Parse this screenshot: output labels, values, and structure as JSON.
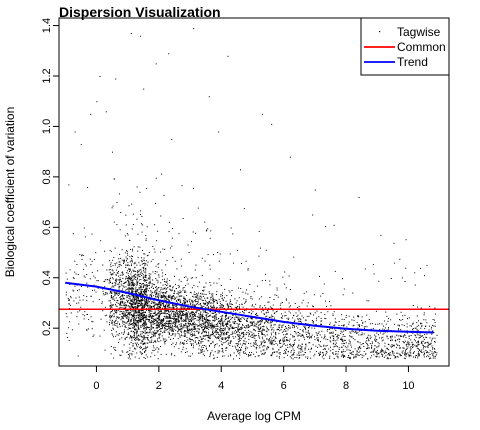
{
  "chart_data": {
    "type": "scatter",
    "title": "Dispersion Visualization",
    "xlabel": "Average log CPM",
    "ylabel": "Biological coefficient of variation",
    "xlim": [
      -1.2,
      11.3
    ],
    "ylim": [
      0.05,
      1.43
    ],
    "x_ticks": [
      0,
      2,
      4,
      6,
      8,
      10
    ],
    "y_ticks": [
      0.2,
      0.4,
      0.6,
      0.8,
      1.0,
      1.2,
      1.4
    ],
    "x_tick_labels": [
      "0",
      "2",
      "4",
      "6",
      "8",
      "10"
    ],
    "y_tick_labels": [
      "0.2",
      "0.4",
      "0.6",
      "0.8",
      "1.0",
      "1.2",
      "1.4"
    ],
    "grid": false,
    "legend": {
      "position": "top-right",
      "entries": [
        {
          "label": "Tagwise",
          "style": "point",
          "color": "#000000"
        },
        {
          "label": "Common",
          "style": "line",
          "color": "#ff0000"
        },
        {
          "label": "Trend",
          "style": "line",
          "color": "#0000ff"
        }
      ]
    },
    "series": [
      {
        "name": "Tagwise",
        "kind": "points",
        "color": "#000000",
        "outliers": [
          [
            -0.9,
            0.77
          ],
          [
            -0.7,
            0.98
          ],
          [
            -0.5,
            0.93
          ],
          [
            -0.3,
            0.76
          ],
          [
            -0.2,
            1.05
          ],
          [
            0.0,
            1.1
          ],
          [
            0.1,
            1.2
          ],
          [
            0.3,
            1.06
          ],
          [
            0.5,
            0.9
          ],
          [
            0.6,
            1.19
          ],
          [
            1.1,
            1.37
          ],
          [
            1.4,
            1.36
          ],
          [
            1.9,
            1.25
          ],
          [
            2.3,
            1.29
          ],
          [
            3.1,
            1.39
          ],
          [
            3.6,
            1.12
          ],
          [
            4.2,
            1.28
          ],
          [
            5.3,
            1.05
          ],
          [
            5.6,
            1.01
          ],
          [
            6.2,
            0.88
          ],
          [
            2.4,
            0.95
          ],
          [
            4.6,
            0.83
          ],
          [
            7.0,
            0.75
          ],
          [
            7.6,
            0.61
          ],
          [
            9.1,
            0.57
          ],
          [
            9.9,
            0.44
          ],
          [
            10.5,
            0.41
          ],
          [
            8.4,
            0.72
          ],
          [
            1.5,
            1.15
          ],
          [
            3.9,
            0.98
          ]
        ]
      },
      {
        "name": "Common",
        "kind": "hline",
        "color": "#ff0000",
        "y": 0.275
      },
      {
        "name": "Trend",
        "kind": "line",
        "color": "#0000ff",
        "x": [
          -1.0,
          0.0,
          1.0,
          2.0,
          3.0,
          4.0,
          5.0,
          6.0,
          7.0,
          8.0,
          9.0,
          10.0,
          10.8
        ],
        "y": [
          0.38,
          0.365,
          0.34,
          0.31,
          0.285,
          0.265,
          0.245,
          0.225,
          0.21,
          0.198,
          0.19,
          0.186,
          0.183
        ]
      }
    ]
  }
}
